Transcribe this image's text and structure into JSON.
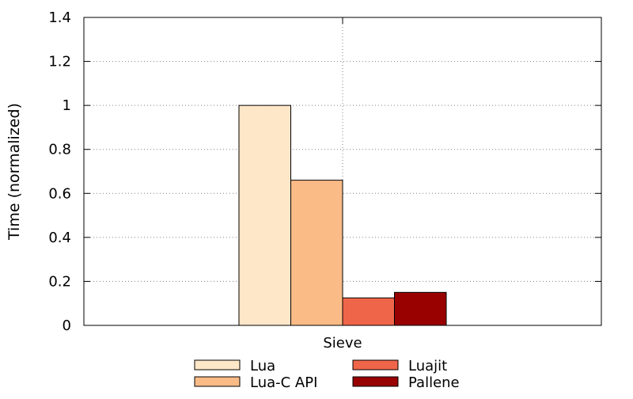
{
  "chart_data": {
    "type": "bar",
    "categories": [
      "Sieve"
    ],
    "series": [
      {
        "name": "Lua",
        "values": [
          1.0
        ],
        "color": "#fee6c8"
      },
      {
        "name": "Lua-C API",
        "values": [
          0.66
        ],
        "color": "#fbbb87"
      },
      {
        "name": "Luajit",
        "values": [
          0.125
        ],
        "color": "#ef6549"
      },
      {
        "name": "Pallene",
        "values": [
          0.15
        ],
        "color": "#990000"
      }
    ],
    "title": "",
    "xlabel": "",
    "ylabel": "Time (normalized)",
    "ylim": [
      0,
      1.4
    ],
    "yticks": [
      0,
      0.2,
      0.4,
      0.6,
      0.8,
      1,
      1.2,
      1.4
    ],
    "ytick_labels": [
      "0",
      "0.2",
      "0.4",
      "0.6",
      "0.8",
      "1",
      "1.2",
      "1.4"
    ],
    "grid": true,
    "legend_position": "bottom"
  }
}
